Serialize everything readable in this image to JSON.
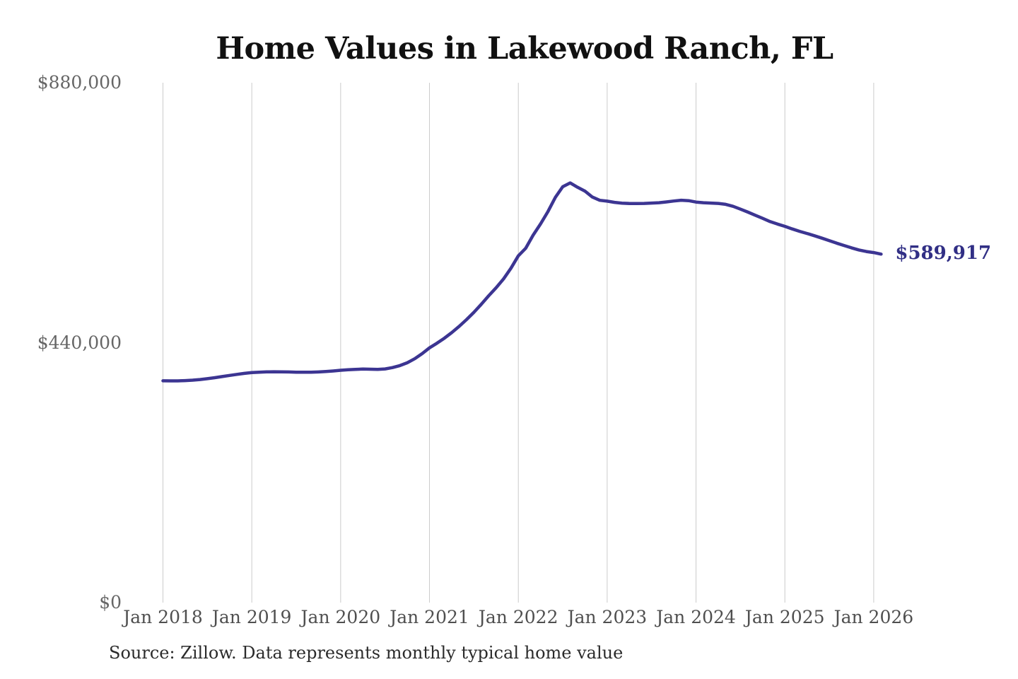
{
  "header": {
    "title": "Home Values in Lakewood Ranch, FL"
  },
  "annotation": {
    "end_label": "$589,917"
  },
  "footer": {
    "source": "Source: Zillow. Data represents monthly typical home value"
  },
  "colors": {
    "background": "#FFFFFF",
    "line": "#3C3592",
    "end_label": "#312F85",
    "gridline": "#CBCBCB",
    "y_tick_text": "#666666",
    "x_tick_text": "#4F4F4F",
    "title_text": "#111111",
    "source_text": "#2B2B2B"
  },
  "chart_data": {
    "type": "line",
    "title": "Home Values in Lakewood Ranch, FL",
    "xlabel": "",
    "ylabel": "",
    "x_tick_labels": [
      "Jan 2018",
      "Jan 2019",
      "Jan 2020",
      "Jan 2021",
      "Jan 2022",
      "Jan 2023",
      "Jan 2024",
      "Jan 2025",
      "Jan 2026"
    ],
    "x_tick_month_indices": [
      0,
      12,
      24,
      36,
      48,
      60,
      72,
      84,
      96
    ],
    "y_tick_labels": [
      "$880,000",
      "$440,000",
      "$0"
    ],
    "y_tick_values": [
      880000,
      440000,
      0
    ],
    "ylim": [
      0,
      880000
    ],
    "grid": "vertical-only",
    "legend": "none",
    "start_month": "2018-01",
    "frequency": "monthly",
    "series": [
      {
        "name": "Typical home value",
        "values": [
          375500,
          375300,
          375400,
          375800,
          376500,
          377600,
          379000,
          380700,
          382600,
          384600,
          386400,
          388000,
          389400,
          390100,
          390600,
          390800,
          390700,
          390400,
          390100,
          389900,
          390000,
          390400,
          391100,
          392100,
          393300,
          394100,
          394900,
          395300,
          395100,
          394700,
          395600,
          397800,
          401200,
          406000,
          412800,
          421500,
          431300,
          439000,
          447500,
          457000,
          467500,
          479000,
          491500,
          505000,
          519500,
          533000,
          548000,
          566000,
          587000,
          600000,
          622000,
          641000,
          662000,
          686000,
          704000,
          710500,
          703000,
          696500,
          686500,
          681000,
          679600,
          677500,
          676200,
          675600,
          675500,
          675800,
          676300,
          677000,
          678200,
          679800,
          681100,
          680400,
          678000,
          677000,
          676300,
          675800,
          674200,
          670800,
          666000,
          661000,
          655800,
          650500,
          645000,
          640800,
          636900,
          632500,
          628500,
          624900,
          621000,
          617000,
          612800,
          608500,
          604500,
          600500,
          597000,
          594300,
          592500,
          589917
        ]
      }
    ],
    "end_label": "$589,917",
    "final_value": 589917,
    "source": "Source: Zillow. Data represents monthly typical home value"
  }
}
